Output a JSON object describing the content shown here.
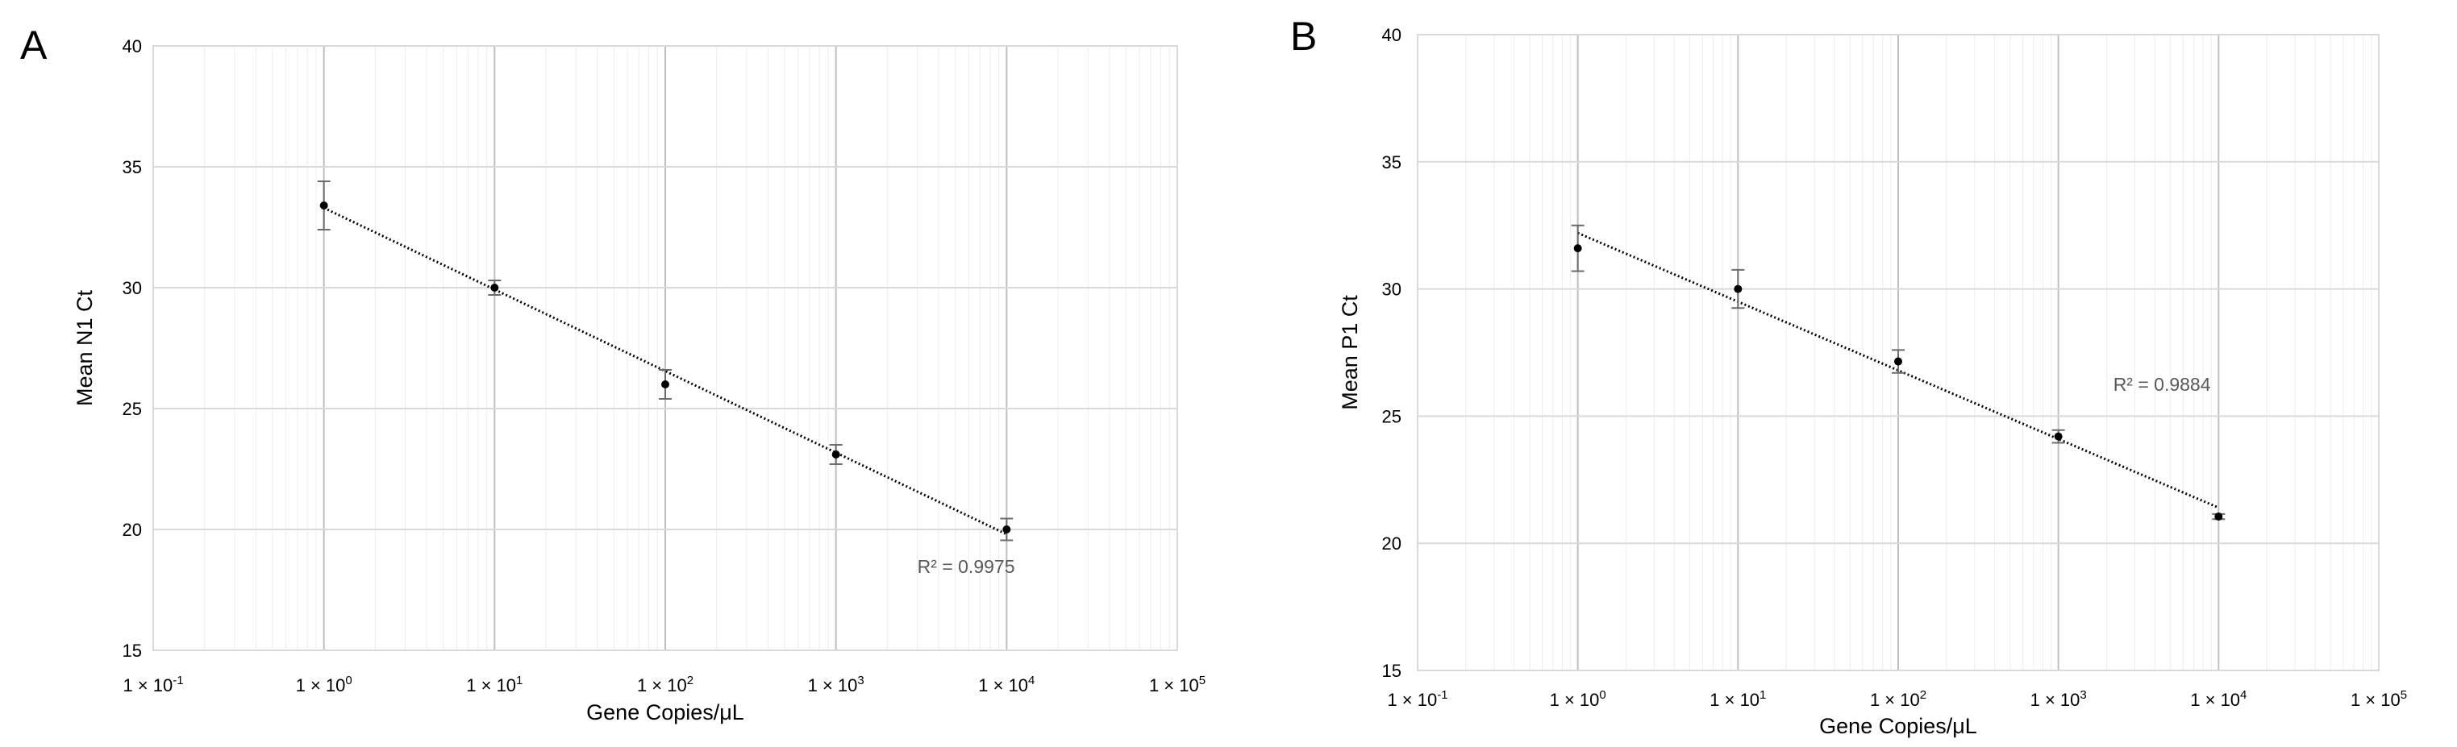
{
  "chart_data": [
    {
      "panel": "A",
      "type": "scatter",
      "xlabel": "Gene Copies/μL",
      "ylabel": "Mean N1 Ct",
      "xscale": "log",
      "xlim": [
        0.1,
        100000
      ],
      "ylim": [
        15,
        40
      ],
      "yticks": [
        15,
        20,
        25,
        30,
        35,
        40
      ],
      "xtick_exponents": [
        "-1",
        "0",
        "1",
        "2",
        "3",
        "4",
        "5"
      ],
      "xtick_base": "1 × 10",
      "grid": true,
      "points": [
        {
          "x": 1,
          "y": 33.4,
          "err": 1.0
        },
        {
          "x": 10,
          "y": 30.0,
          "err": 0.3
        },
        {
          "x": 100,
          "y": 26.0,
          "err": 0.6
        },
        {
          "x": 1000,
          "y": 23.1,
          "err": 0.4
        },
        {
          "x": 10000,
          "y": 20.0,
          "err": 0.45
        }
      ],
      "trendline": {
        "type": "linear-log",
        "x_start": 1,
        "y_start": 33.3,
        "x_end": 10000,
        "y_end": 19.8
      },
      "annotation": "R² = 0.9975",
      "annotation_at": {
        "x": 3000,
        "y": 18.2
      }
    },
    {
      "panel": "B",
      "type": "scatter",
      "xlabel": "Gene Copies/μL",
      "ylabel": "Mean P1 Ct",
      "xscale": "log",
      "xlim": [
        0.1,
        100000
      ],
      "ylim": [
        15,
        40
      ],
      "yticks": [
        15,
        20,
        25,
        30,
        35,
        40
      ],
      "xtick_exponents": [
        "-1",
        "0",
        "1",
        "2",
        "3",
        "4",
        "5"
      ],
      "xtick_base": "1 × 10",
      "grid": true,
      "points": [
        {
          "x": 1,
          "y": 31.6,
          "err": 0.9
        },
        {
          "x": 10,
          "y": 30.0,
          "err": 0.75
        },
        {
          "x": 100,
          "y": 27.15,
          "err": 0.45
        },
        {
          "x": 1000,
          "y": 24.2,
          "err": 0.25
        },
        {
          "x": 10000,
          "y": 21.05,
          "err": 0.1
        }
      ],
      "trendline": {
        "type": "linear-log",
        "x_start": 1,
        "y_start": 32.2,
        "x_end": 10000,
        "y_end": 21.4
      },
      "annotation": "R² = 0.9884",
      "annotation_at": {
        "x": 2200,
        "y": 26.0
      }
    }
  ]
}
